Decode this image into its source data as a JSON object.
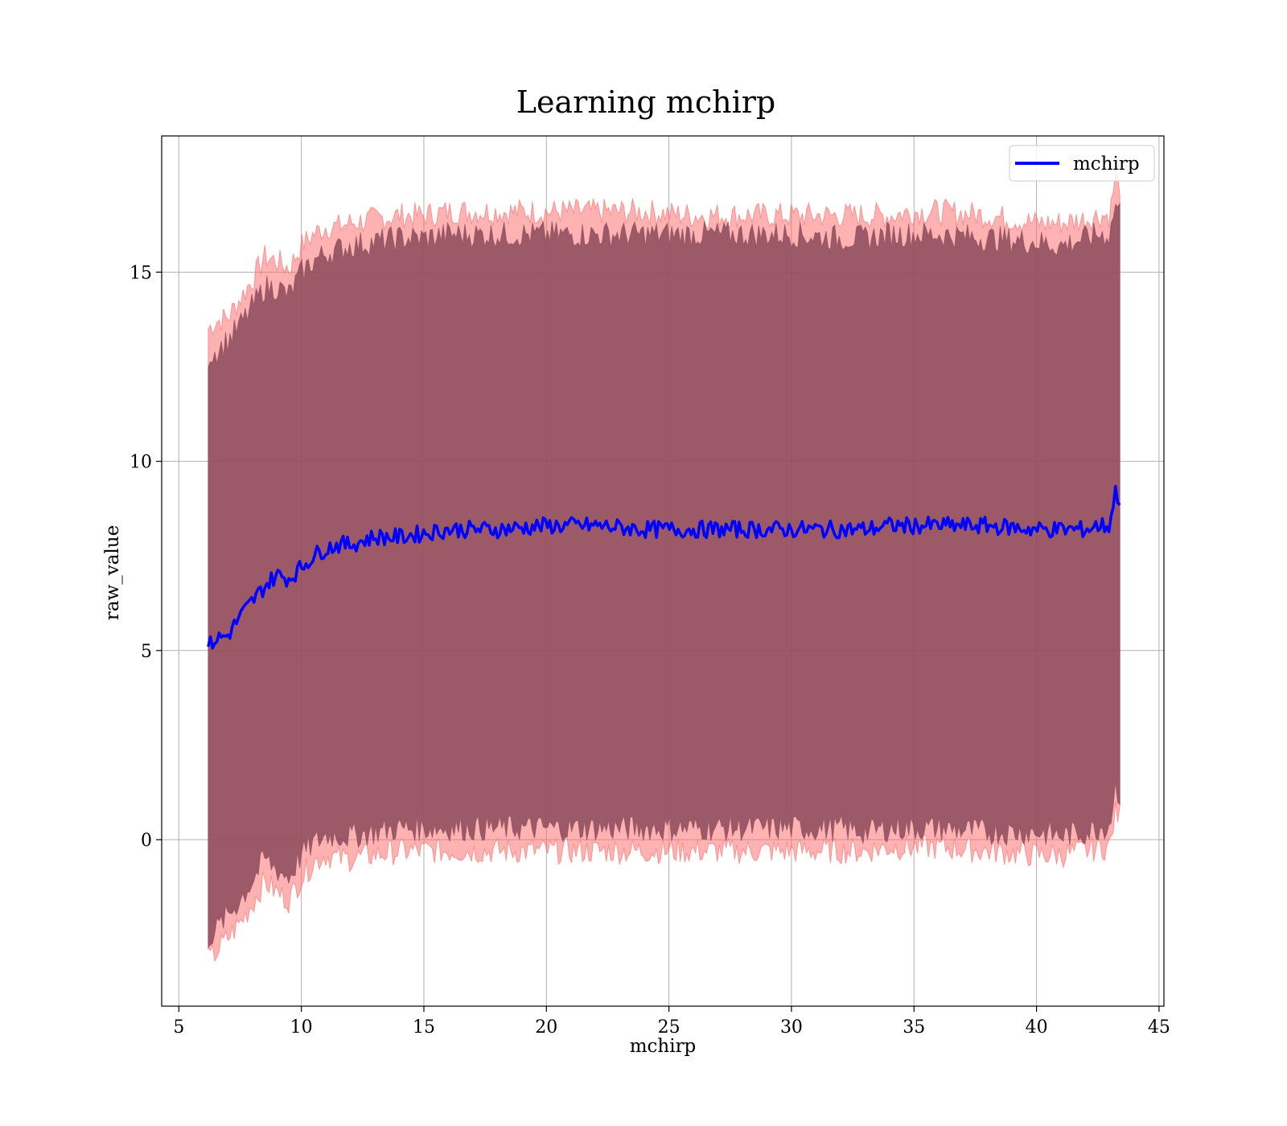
{
  "chart_data": {
    "type": "line",
    "title": "Learning mchirp",
    "xlabel": "mchirp",
    "ylabel": "raw_value",
    "xlim": [
      4.3,
      45.2
    ],
    "ylim": [
      -4.4,
      18.6
    ],
    "xticks": [
      5,
      10,
      15,
      20,
      25,
      30,
      35,
      40,
      45
    ],
    "yticks": [
      0,
      5,
      10,
      15
    ],
    "grid": true,
    "legend": {
      "position": "top-right",
      "entries": [
        "mchirp"
      ]
    },
    "colors": {
      "line": "#0000ff",
      "band_outer": "#ff6666",
      "band_inner": "#8b4a5a"
    },
    "series": [
      {
        "name": "mchirp",
        "x": [
          6.2,
          6.5,
          7.0,
          7.5,
          8.0,
          8.5,
          9.0,
          9.5,
          10.0,
          10.5,
          11.0,
          11.5,
          12.0,
          13.0,
          14.0,
          15.0,
          16.0,
          17.0,
          18.0,
          20.0,
          22.0,
          24.0,
          26.0,
          28.0,
          30.0,
          32.0,
          33.0,
          34.0,
          35.0,
          36.0,
          38.0,
          40.0,
          41.0,
          42.0,
          42.5,
          43.0,
          43.2,
          43.4
        ],
        "y": [
          5.1,
          5.3,
          5.4,
          5.9,
          6.3,
          6.7,
          7.0,
          6.9,
          7.2,
          7.5,
          7.7,
          7.8,
          7.8,
          8.0,
          8.0,
          8.1,
          8.2,
          8.2,
          8.2,
          8.3,
          8.3,
          8.2,
          8.2,
          8.2,
          8.2,
          8.2,
          8.2,
          8.3,
          8.3,
          8.3,
          8.3,
          8.2,
          8.2,
          8.2,
          8.3,
          8.3,
          9.2,
          9.0
        ]
      }
    ],
    "bands": [
      {
        "x": [
          6.2,
          6.5,
          7.0,
          7.5,
          8.0,
          8.5,
          9.0,
          9.5,
          10.0,
          10.5,
          11.0,
          11.5,
          12.0,
          13.0,
          14.0,
          15.0,
          16.0,
          17.0,
          18.0,
          20.0,
          22.0,
          24.0,
          26.0,
          28.0,
          30.0,
          32.0,
          33.0,
          34.0,
          35.0,
          36.0,
          38.0,
          40.0,
          41.0,
          42.0,
          42.5,
          43.0,
          43.2,
          43.4
        ],
        "upper": [
          13.5,
          13.7,
          13.8,
          14.3,
          14.8,
          15.4,
          15.3,
          15.1,
          15.7,
          16.0,
          16.2,
          16.2,
          16.3,
          16.4,
          16.5,
          16.5,
          16.6,
          16.6,
          16.6,
          16.6,
          16.6,
          16.6,
          16.5,
          16.5,
          16.5,
          16.5,
          16.5,
          16.5,
          16.6,
          16.6,
          16.5,
          16.3,
          16.3,
          16.4,
          16.5,
          16.5,
          17.5,
          17.3
        ],
        "lower": [
          -3.2,
          -3.0,
          -2.6,
          -2.2,
          -1.7,
          -1.1,
          -1.4,
          -1.6,
          -1.0,
          -0.6,
          -0.4,
          -0.5,
          -0.5,
          -0.4,
          -0.3,
          -0.3,
          -0.3,
          -0.3,
          -0.3,
          -0.3,
          -0.3,
          -0.3,
          -0.3,
          -0.3,
          -0.3,
          -0.3,
          -0.3,
          -0.2,
          -0.2,
          -0.2,
          -0.3,
          -0.4,
          -0.4,
          -0.3,
          -0.2,
          -0.2,
          0.7,
          0.6
        ]
      },
      {
        "x": [
          6.2,
          6.5,
          7.0,
          7.5,
          8.0,
          8.5,
          9.0,
          9.5,
          10.0,
          10.5,
          11.0,
          11.5,
          12.0,
          13.0,
          14.0,
          15.0,
          16.0,
          17.0,
          18.0,
          20.0,
          22.0,
          24.0,
          26.0,
          28.0,
          30.0,
          32.0,
          33.0,
          34.0,
          35.0,
          36.0,
          38.0,
          40.0,
          41.0,
          42.0,
          42.5,
          43.0,
          43.2,
          43.4
        ],
        "upper": [
          12.8,
          12.9,
          13.2,
          13.6,
          14.1,
          14.6,
          14.6,
          14.4,
          15.0,
          15.3,
          15.5,
          15.6,
          15.7,
          15.8,
          15.9,
          15.9,
          16.0,
          16.0,
          16.0,
          16.0,
          16.0,
          16.0,
          16.0,
          16.0,
          16.0,
          15.9,
          15.9,
          16.0,
          16.0,
          16.0,
          15.9,
          15.8,
          15.7,
          15.9,
          16.0,
          16.0,
          16.8,
          16.6
        ],
        "lower": [
          -2.6,
          -2.4,
          -2.0,
          -1.6,
          -1.1,
          -0.5,
          -0.8,
          -1.0,
          -0.4,
          -0.1,
          0.1,
          0.1,
          0.1,
          0.2,
          0.3,
          0.3,
          0.3,
          0.3,
          0.3,
          0.3,
          0.3,
          0.3,
          0.3,
          0.3,
          0.3,
          0.3,
          0.2,
          0.3,
          0.3,
          0.3,
          0.2,
          0.2,
          0.1,
          0.2,
          0.3,
          0.4,
          1.4,
          1.2
        ]
      }
    ]
  }
}
